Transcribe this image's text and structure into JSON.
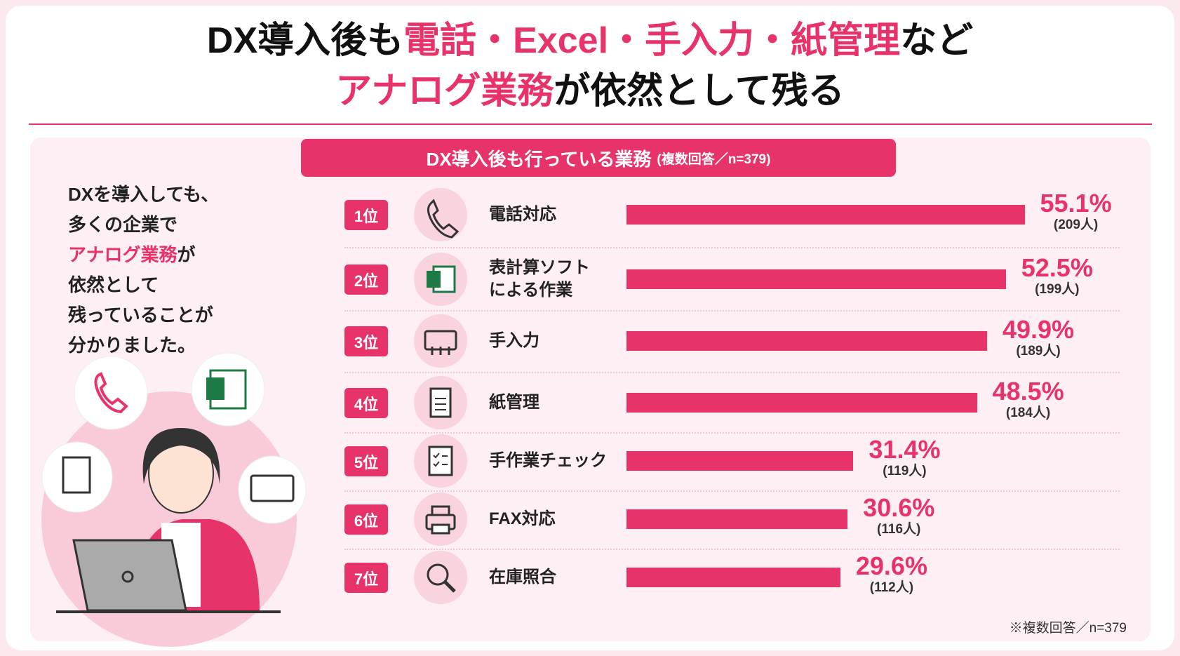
{
  "title": [
    [
      {
        "text": "DX導入後も",
        "highlight": false
      },
      {
        "text": "電話・Excel・手入力・紙管理",
        "highlight": true
      },
      {
        "text": "など",
        "highlight": false
      }
    ],
    [
      {
        "text": "アナログ業務",
        "highlight": true
      },
      {
        "text": "が依然として残る",
        "highlight": false
      }
    ]
  ],
  "lead": [
    [
      {
        "text": "DXを導入しても、",
        "highlight": false
      }
    ],
    [
      {
        "text": "多くの企業で",
        "highlight": false
      }
    ],
    [
      {
        "text": "アナログ業務",
        "highlight": true
      },
      {
        "text": "が",
        "highlight": false
      }
    ],
    [
      {
        "text": "依然として",
        "highlight": false
      }
    ],
    [
      {
        "text": "残っていることが",
        "highlight": false
      }
    ],
    [
      {
        "text": "分かりました。",
        "highlight": false
      }
    ]
  ],
  "footnote": "※複数回答／n=379",
  "chart_data": {
    "type": "bar",
    "orientation": "horizontal",
    "title": "DX導入後も行っている業務",
    "subtitle": "(複数回答／n=379)",
    "ranks": [
      "1位",
      "2位",
      "3位",
      "4位",
      "5位",
      "6位",
      "7位"
    ],
    "categories": [
      "電話対応",
      "表計算ソフト\nによる作業",
      "手入力",
      "紙管理",
      "手作業チェック",
      "FAX対応",
      "在庫照合"
    ],
    "values": [
      55.1,
      52.5,
      49.9,
      48.5,
      31.4,
      30.6,
      29.6
    ],
    "value_labels": [
      "55.1%",
      "52.5%",
      "49.9%",
      "48.5%",
      "31.4%",
      "30.6%",
      "29.6%"
    ],
    "counts": [
      "(209人)",
      "(199人)",
      "(189人)",
      "(184人)",
      "(119人)",
      "(116人)",
      "(112人)"
    ],
    "xlim": [
      0,
      100
    ],
    "color": "#e8336a"
  }
}
